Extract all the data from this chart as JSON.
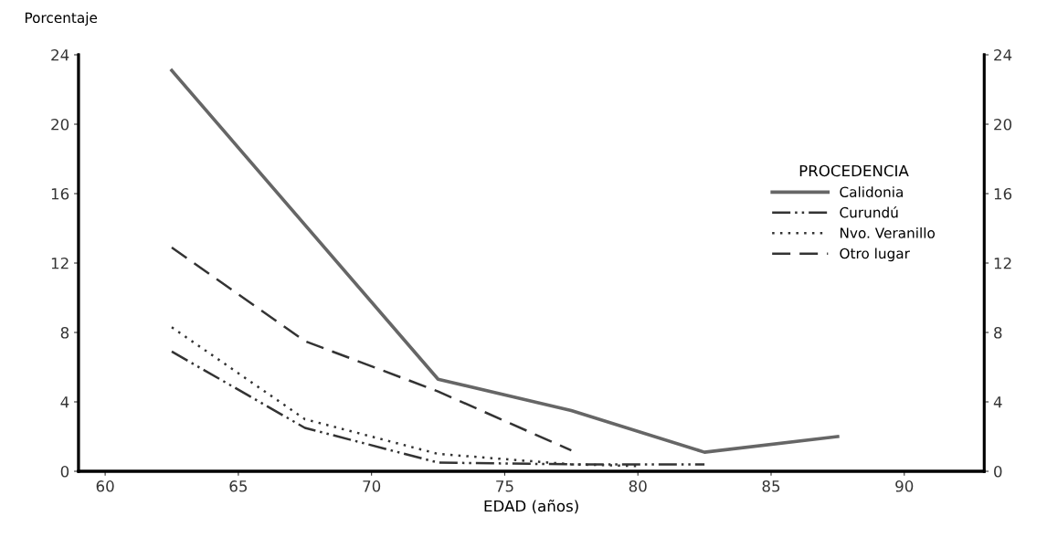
{
  "chart_data": {
    "type": "line",
    "ylabel": "Porcentaje",
    "xlabel": "EDAD (años)",
    "legend_title": "PROCEDENCIA",
    "legend": "right",
    "xlim": [
      59,
      93
    ],
    "xticks": [
      60,
      65,
      70,
      75,
      80,
      85,
      90
    ],
    "ylim": [
      0,
      24
    ],
    "yticks": [
      0,
      4,
      8,
      12,
      16,
      20,
      24
    ],
    "y2lim": [
      0,
      24
    ],
    "y2ticks": [
      0,
      4,
      8,
      12,
      16,
      20,
      24
    ],
    "grid": false,
    "marker": "none",
    "series": [
      {
        "name": "Calidonia",
        "color": "#666666",
        "line_style": "solid",
        "x": [
          62.5,
          72.5,
          77.5,
          82.5,
          87.5
        ],
        "values": [
          23.1,
          5.3,
          3.5,
          1.1,
          2.0
        ]
      },
      {
        "name": "Curundú",
        "color": "#333333",
        "line_style": "dashdotdot",
        "x": [
          62.5,
          67.5,
          72.5,
          77.5,
          82.5
        ],
        "values": [
          6.9,
          2.5,
          0.5,
          0.4,
          0.4
        ]
      },
      {
        "name": "Nvo. Veranillo",
        "color": "#333333",
        "line_style": "dotted",
        "x": [
          62.5,
          67.5,
          72.5,
          77.5,
          80
        ],
        "values": [
          8.3,
          3.0,
          1.0,
          0.4,
          0.3
        ]
      },
      {
        "name": "Otro lugar",
        "color": "#333333",
        "line_style": "dashed",
        "x": [
          62.5,
          67.5,
          72.5,
          77.5
        ],
        "values": [
          12.9,
          7.5,
          4.6,
          1.2
        ]
      }
    ]
  }
}
